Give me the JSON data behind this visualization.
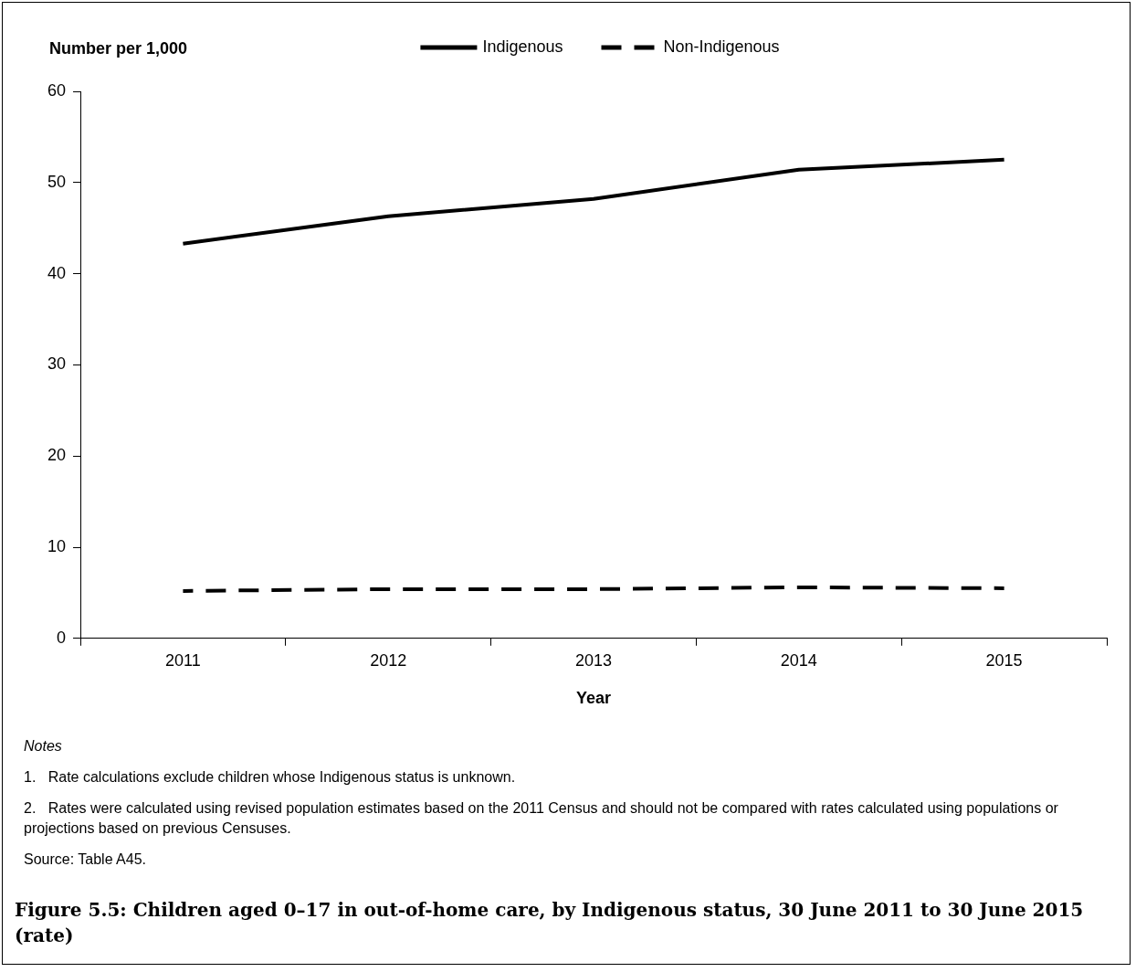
{
  "chart_data": {
    "type": "line",
    "title": "Figure 5.5: Children aged 0–17 in out-of-home care, by Indigenous status, 30 June 2011 to 30 June 2015 (rate)",
    "xlabel": "Year",
    "ylabel": "Number per 1,000",
    "categories": [
      "2011",
      "2012",
      "2013",
      "2014",
      "2015"
    ],
    "series": [
      {
        "name": "Indigenous",
        "color": "#000000",
        "values": [
          43.3,
          46.3,
          48.2,
          51.4,
          52.5
        ],
        "line_style": "solid"
      },
      {
        "name": "Non-Indigenous",
        "color": "#000000",
        "values": [
          5.2,
          5.4,
          5.4,
          5.6,
          5.5
        ],
        "line_style": "dashed"
      }
    ],
    "ylim": [
      0,
      60
    ],
    "yticks": [
      0,
      10,
      20,
      30,
      40,
      50,
      60
    ],
    "grid": false,
    "legend": "top",
    "marker": "none",
    "annotations": [
      "Notes",
      "1.   Rate calculations exclude children whose Indigenous status is unknown.",
      "2.   Rates were calculated using revised population estimates based on the 2011 Census and should not be compared with rates calculated using populations or projections based on previous Censuses.",
      "Source: Table A45."
    ]
  }
}
